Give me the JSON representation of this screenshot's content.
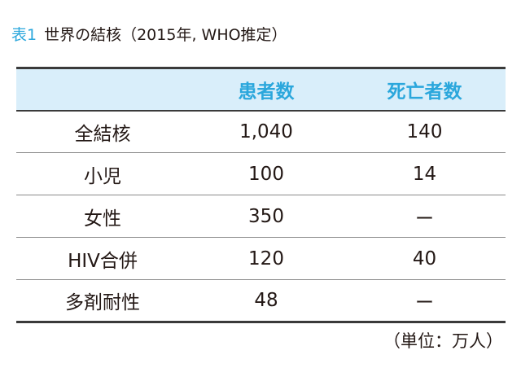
{
  "caption": {
    "label": "表1",
    "title": "世界の結核（2015年, WHO推定）"
  },
  "table": {
    "headers": [
      "",
      "患者数",
      "死亡者数"
    ],
    "rows": [
      [
        "全結核",
        "1,040",
        "140"
      ],
      [
        "小児",
        "100",
        "14"
      ],
      [
        "女性",
        "350",
        "ー"
      ],
      [
        "HIV合併",
        "120",
        "40"
      ],
      [
        "多剤耐性",
        "48",
        "ー"
      ]
    ]
  },
  "note": "（単位：万人）",
  "colors": {
    "accent": "#2ba7dc",
    "header_bg": "#d9eefa",
    "text": "#231815"
  }
}
